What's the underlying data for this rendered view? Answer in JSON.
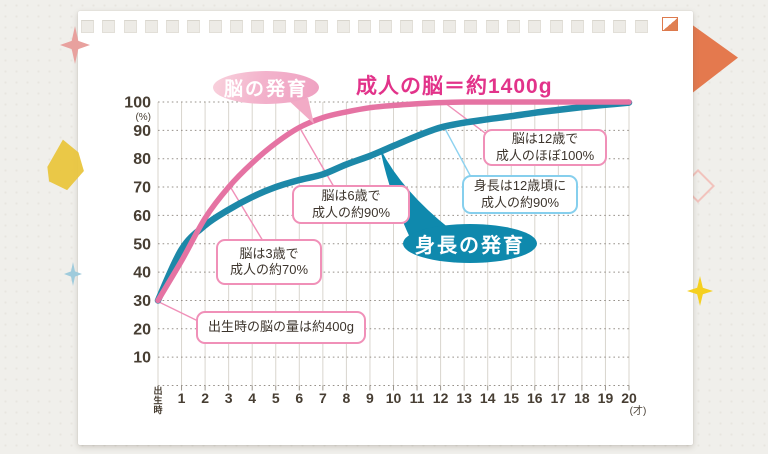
{
  "theme": {
    "brain_color": "#e573a3",
    "height_color": "#1d88a8",
    "title_color": "#e2338a",
    "leader_pink": "#f090b8",
    "leader_blue": "#8dd2f0",
    "grid_vertical": "#d9d5ce",
    "grid_dotted": "#97918a",
    "axis_text": "#473e33",
    "bubble_height_fill": "#0f89ad"
  },
  "chart_data": {
    "type": "line",
    "title": "成人の脳＝約1400g",
    "ylabel_unit": "(%)",
    "xlabel_unit": "(才)",
    "x_birth_label": "出生時",
    "x_ticks": [
      "1",
      "2",
      "3",
      "4",
      "5",
      "6",
      "7",
      "8",
      "9",
      "10",
      "11",
      "12",
      "13",
      "14",
      "15",
      "16",
      "17",
      "18",
      "19",
      "20"
    ],
    "y_ticks": [
      100,
      90,
      80,
      70,
      60,
      50,
      40,
      30,
      20,
      10
    ],
    "ylim": [
      0,
      100
    ],
    "x_ages": [
      0,
      1,
      2,
      3,
      4,
      5,
      6,
      7,
      8,
      9,
      10,
      11,
      12,
      13,
      14,
      15,
      16,
      17,
      18,
      19,
      20
    ],
    "grid": true,
    "series": [
      {
        "name": "脳の発育",
        "color": "#e573a3",
        "values": [
          30,
          44,
          59,
          70,
          78.5,
          85.5,
          91,
          94.5,
          96.5,
          98,
          98.8,
          99.4,
          99.8,
          100,
          100,
          100,
          100,
          100,
          100,
          100,
          100
        ]
      },
      {
        "name": "身長の発育",
        "color": "#1d88a8",
        "values": [
          30,
          48,
          56.5,
          62,
          66.5,
          70,
          72.5,
          74.5,
          78,
          81,
          84.5,
          88,
          91,
          92.7,
          93.9,
          95,
          96.2,
          97.2,
          98.2,
          99,
          99.8
        ]
      }
    ]
  },
  "callouts": {
    "birth": {
      "lines": [
        "出生時の脳の量は約400g"
      ],
      "age": 0
    },
    "brain3": {
      "lines": [
        "脳は3歳で",
        "成人の約70%"
      ],
      "age": 3
    },
    "brain6": {
      "lines": [
        "脳は6歳で",
        "成人の約90%"
      ],
      "age": 6
    },
    "brain12": {
      "lines": [
        "脳は12歳で",
        "成人のほぼ100%"
      ],
      "age": 12
    },
    "height12": {
      "lines": [
        "身長は12歳頃に",
        "成人の約90%"
      ],
      "age": 12
    }
  },
  "decor": {
    "square_count": 27
  }
}
